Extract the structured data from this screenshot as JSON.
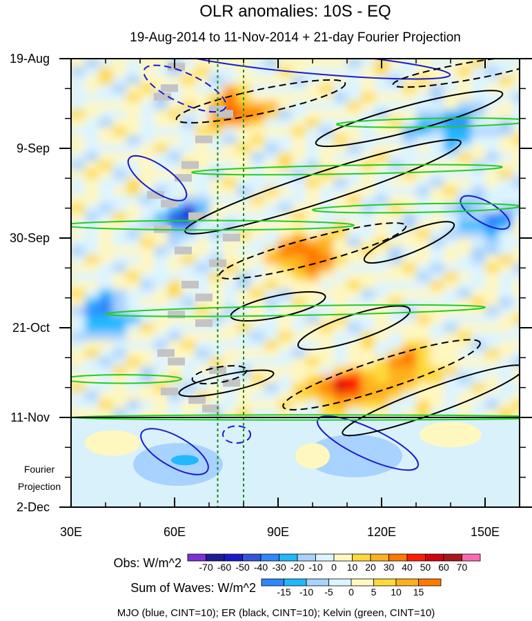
{
  "chart_data": {
    "type": "heatmap",
    "title": "OLR anomalies: 10S - EQ",
    "subtitle": "19-Aug-2014 to 11-Nov-2014 + 21-day Fourier Projection",
    "x_axis": {
      "range": [
        30,
        160
      ],
      "ticks": [
        {
          "value": 30,
          "label": "30E"
        },
        {
          "value": 60,
          "label": "60E"
        },
        {
          "value": 90,
          "label": "90E"
        },
        {
          "value": 120,
          "label": "120E"
        },
        {
          "value": 150,
          "label": "150E"
        }
      ]
    },
    "y_axis": {
      "range_days": [
        0,
        105
      ],
      "reversed": true,
      "ticks": [
        {
          "day": 0,
          "label": "19-Aug"
        },
        {
          "day": 21,
          "label": "9-Sep"
        },
        {
          "day": 42,
          "label": "30-Sep"
        },
        {
          "day": 63,
          "label": "21-Oct"
        },
        {
          "day": 84,
          "label": "11-Nov"
        },
        {
          "day": 105,
          "label": "2-Dec"
        }
      ]
    },
    "projection_start_day": 84,
    "projection_label_line1": "Fourier",
    "projection_label_line2": "Projection",
    "reference_lines_lon": [
      72.5,
      80
    ],
    "obs_legend": {
      "label": "Obs: W/m^2",
      "ticks": [
        "-70",
        "-60",
        "-50",
        "-40",
        "-30",
        "-20",
        "-10",
        "0",
        "10",
        "20",
        "30",
        "40",
        "50",
        "60",
        "70"
      ],
      "colors": [
        "#7f2fd6",
        "#1c1c99",
        "#1a1acc",
        "#3355dd",
        "#2f87ff",
        "#21b8ff",
        "#a8d2ff",
        "#dcf4ff",
        "#fff7c0",
        "#ffd93b",
        "#ffb01e",
        "#ff7a00",
        "#ff1d00",
        "#d40010",
        "#a81818",
        "#ff69b4"
      ]
    },
    "waves_legend": {
      "label": "Sum of Waves: W/m^2",
      "ticks": [
        "-15",
        "-10",
        "-5",
        "0",
        "5",
        "10",
        "15"
      ],
      "colors": [
        "#2f87ff",
        "#21b8ff",
        "#a8d2ff",
        "#dcf4ff",
        "#fff7c0",
        "#ffd93b",
        "#ffb01e",
        "#ff7a00"
      ]
    },
    "footnote": "MJO (blue, CINT=10); ER (black, CINT=10); Kelvin (green, CINT=10)",
    "contours": [
      {
        "wave": "MJO",
        "color": "#1a1acc",
        "sign": "negative",
        "center": [
          63,
          7
        ],
        "rx": 13,
        "ry": 3.5,
        "angle": 25
      },
      {
        "wave": "MJO",
        "color": "#1a1acc",
        "sign": "negative",
        "center": [
          78,
          88
        ],
        "rx": 4,
        "ry": 2,
        "angle": 0
      },
      {
        "wave": "MJO",
        "color": "#1a1acc",
        "sign": "positive",
        "center": [
          55,
          28
        ],
        "rx": 10,
        "ry": 3,
        "angle": 35
      },
      {
        "wave": "MJO",
        "color": "#1a1acc",
        "sign": "positive",
        "center": [
          100,
          1
        ],
        "rx": 40,
        "ry": 2.5,
        "angle": 5
      },
      {
        "wave": "MJO",
        "color": "#1a1acc",
        "sign": "positive",
        "center": [
          60,
          92
        ],
        "rx": 11,
        "ry": 3.5,
        "angle": 30
      },
      {
        "wave": "MJO",
        "color": "#1a1acc",
        "sign": "positive",
        "center": [
          116,
          90
        ],
        "rx": 16,
        "ry": 3.5,
        "angle": 25
      },
      {
        "wave": "MJO",
        "color": "#1a1acc",
        "sign": "positive",
        "center": [
          150,
          36
        ],
        "rx": 8,
        "ry": 2.5,
        "angle": 30
      },
      {
        "wave": "ER",
        "color": "#000000",
        "sign": "negative",
        "center": [
          85,
          10
        ],
        "rx": 25,
        "ry": 2.8,
        "angle": -12
      },
      {
        "wave": "ER",
        "color": "#000000",
        "sign": "negative",
        "center": [
          145,
          3
        ],
        "rx": 22,
        "ry": 2,
        "angle": -10
      },
      {
        "wave": "ER",
        "color": "#000000",
        "sign": "negative",
        "center": [
          100,
          45
        ],
        "rx": 28,
        "ry": 3,
        "angle": -15
      },
      {
        "wave": "ER",
        "color": "#000000",
        "sign": "negative",
        "center": [
          120,
          74
        ],
        "rx": 30,
        "ry": 3.5,
        "angle": -18
      },
      {
        "wave": "ER",
        "color": "#000000",
        "sign": "negative",
        "center": [
          73,
          74
        ],
        "rx": 8,
        "ry": 1.8,
        "angle": -10
      },
      {
        "wave": "ER",
        "color": "#000000",
        "sign": "positive",
        "center": [
          103,
          30
        ],
        "rx": 42,
        "ry": 3.5,
        "angle": -18
      },
      {
        "wave": "ER",
        "color": "#000000",
        "sign": "positive",
        "center": [
          128,
          14
        ],
        "rx": 28,
        "ry": 3,
        "angle": -15
      },
      {
        "wave": "ER",
        "color": "#000000",
        "sign": "positive",
        "center": [
          90,
          58
        ],
        "rx": 14,
        "ry": 2.5,
        "angle": -12
      },
      {
        "wave": "ER",
        "color": "#000000",
        "sign": "positive",
        "center": [
          112,
          63
        ],
        "rx": 17,
        "ry": 3,
        "angle": -18
      },
      {
        "wave": "ER",
        "color": "#000000",
        "sign": "positive",
        "center": [
          128,
          43
        ],
        "rx": 14,
        "ry": 2.5,
        "angle": -22
      },
      {
        "wave": "ER",
        "color": "#000000",
        "sign": "positive",
        "center": [
          135,
          80
        ],
        "rx": 28,
        "ry": 3,
        "angle": -20
      },
      {
        "wave": "ER",
        "color": "#000000",
        "sign": "positive",
        "center": [
          75,
          76
        ],
        "rx": 14,
        "ry": 2,
        "angle": -12
      },
      {
        "wave": "Kelvin",
        "color": "#22cc22",
        "sign": "positive",
        "center": [
          70,
          39
        ],
        "rx": 42,
        "ry": 1.1,
        "angle": 0
      },
      {
        "wave": "Kelvin",
        "color": "#22cc22",
        "sign": "positive",
        "center": [
          110,
          26
        ],
        "rx": 45,
        "ry": 1,
        "angle": -1
      },
      {
        "wave": "Kelvin",
        "color": "#22cc22",
        "sign": "positive",
        "center": [
          95,
          59
        ],
        "rx": 55,
        "ry": 1.1,
        "angle": -1
      },
      {
        "wave": "Kelvin",
        "color": "#22cc22",
        "sign": "positive",
        "center": [
          135,
          15
        ],
        "rx": 28,
        "ry": 1,
        "angle": -1
      },
      {
        "wave": "Kelvin",
        "color": "#22cc22",
        "sign": "positive",
        "center": [
          130,
          35
        ],
        "rx": 30,
        "ry": 1,
        "angle": -1
      },
      {
        "wave": "Kelvin",
        "color": "#22cc22",
        "sign": "positive",
        "center": [
          45,
          75
        ],
        "rx": 17,
        "ry": 1,
        "angle": 0
      },
      {
        "wave": "Kelvin",
        "color": "#22cc22",
        "sign": "positive",
        "center": [
          100,
          84
        ],
        "rx": 70,
        "ry": 0.6,
        "angle": 0
      }
    ]
  }
}
